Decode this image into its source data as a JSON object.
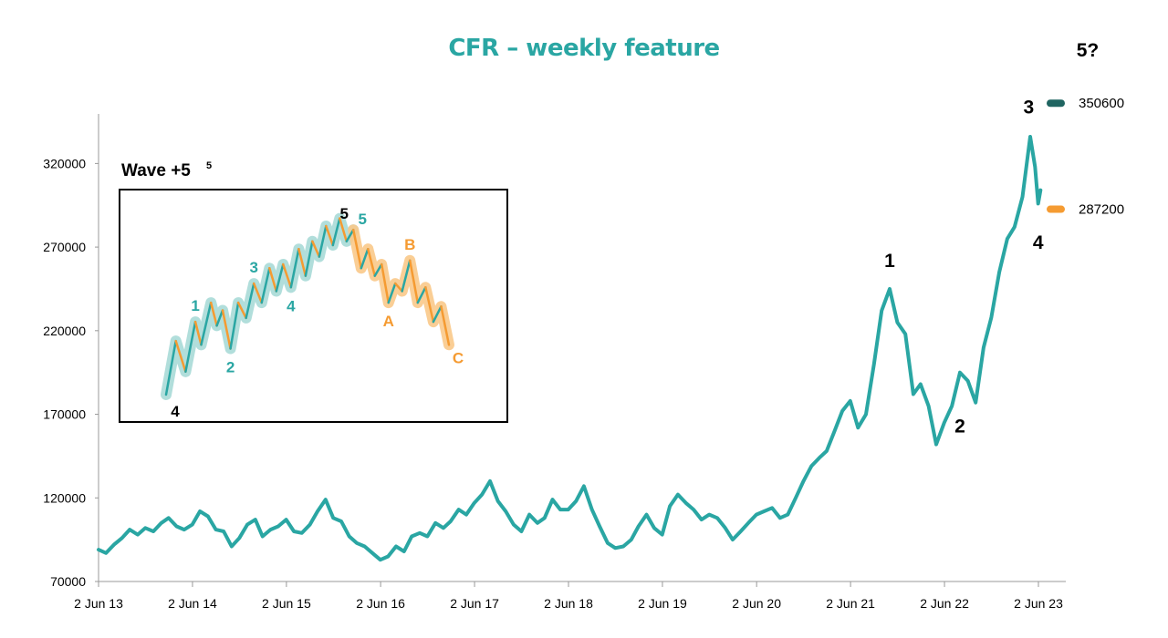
{
  "colors": {
    "primary": "#2aa6a3",
    "dark_teal": "#1f6561",
    "orange": "#f59b32",
    "light_teal": "#a9dad7",
    "light_orange": "#f9c98a",
    "axis": "#999999",
    "text": "#000000"
  },
  "chart_data": {
    "type": "line",
    "title": "CFR – weekly feature",
    "xlabel": "",
    "ylabel": "",
    "xlim": [
      "2013-06-02",
      "2023-06-15"
    ],
    "ylim": [
      70000,
      360000
    ],
    "yticks": [
      70000,
      120000,
      170000,
      220000,
      270000,
      320000
    ],
    "ytick_labels": [
      "70000",
      "120000",
      "170000",
      "220000",
      "270000",
      "320000"
    ],
    "xticks": [
      "2013-06-02",
      "2014-06-02",
      "2015-06-02",
      "2016-06-02",
      "2017-06-02",
      "2018-06-02",
      "2019-06-02",
      "2020-06-02",
      "2021-06-02",
      "2022-06-02",
      "2023-06-02"
    ],
    "xtick_labels": [
      "2 Jun 13",
      "2 Jun 14",
      "2 Jun 15",
      "2 Jun 16",
      "2 Jun 17",
      "2 Jun 18",
      "2 Jun 19",
      "2 Jun 20",
      "2 Jun 21",
      "2 Jun 22",
      "2 Jun 23"
    ],
    "grid": false,
    "series": [
      {
        "points": [
          [
            "2013-06-02",
            89000
          ],
          [
            "2013-07-01",
            87000
          ],
          [
            "2013-08-01",
            92000
          ],
          [
            "2013-09-01",
            96000
          ],
          [
            "2013-10-01",
            101000
          ],
          [
            "2013-11-01",
            98000
          ],
          [
            "2013-12-01",
            102000
          ],
          [
            "2014-01-01",
            100000
          ],
          [
            "2014-02-01",
            105000
          ],
          [
            "2014-03-01",
            108000
          ],
          [
            "2014-04-01",
            103000
          ],
          [
            "2014-05-01",
            101000
          ],
          [
            "2014-06-01",
            104000
          ],
          [
            "2014-07-01",
            112000
          ],
          [
            "2014-08-01",
            109000
          ],
          [
            "2014-09-01",
            101000
          ],
          [
            "2014-10-01",
            100000
          ],
          [
            "2014-11-01",
            91000
          ],
          [
            "2014-12-01",
            96000
          ],
          [
            "2015-01-01",
            104000
          ],
          [
            "2015-02-01",
            107000
          ],
          [
            "2015-03-01",
            97000
          ],
          [
            "2015-04-01",
            101000
          ],
          [
            "2015-05-01",
            103000
          ],
          [
            "2015-06-01",
            107000
          ],
          [
            "2015-07-01",
            100000
          ],
          [
            "2015-08-01",
            99000
          ],
          [
            "2015-09-01",
            104000
          ],
          [
            "2015-10-01",
            112000
          ],
          [
            "2015-11-01",
            119000
          ],
          [
            "2015-12-01",
            108000
          ],
          [
            "2016-01-01",
            106000
          ],
          [
            "2016-02-01",
            97000
          ],
          [
            "2016-03-01",
            93000
          ],
          [
            "2016-04-01",
            91000
          ],
          [
            "2016-05-01",
            87000
          ],
          [
            "2016-06-01",
            83000
          ],
          [
            "2016-07-01",
            85000
          ],
          [
            "2016-08-01",
            91000
          ],
          [
            "2016-09-01",
            88000
          ],
          [
            "2016-10-01",
            97000
          ],
          [
            "2016-11-01",
            99000
          ],
          [
            "2016-12-01",
            97000
          ],
          [
            "2017-01-01",
            105000
          ],
          [
            "2017-02-01",
            102000
          ],
          [
            "2017-03-01",
            106000
          ],
          [
            "2017-04-01",
            113000
          ],
          [
            "2017-05-01",
            110000
          ],
          [
            "2017-06-01",
            117000
          ],
          [
            "2017-07-01",
            122000
          ],
          [
            "2017-08-01",
            130000
          ],
          [
            "2017-09-01",
            118000
          ],
          [
            "2017-10-01",
            112000
          ],
          [
            "2017-11-01",
            104000
          ],
          [
            "2017-12-01",
            100000
          ],
          [
            "2018-01-01",
            110000
          ],
          [
            "2018-02-01",
            105000
          ],
          [
            "2018-03-01",
            108000
          ],
          [
            "2018-04-01",
            119000
          ],
          [
            "2018-05-01",
            113000
          ],
          [
            "2018-06-01",
            113000
          ],
          [
            "2018-07-01",
            118000
          ],
          [
            "2018-08-01",
            127000
          ],
          [
            "2018-09-01",
            113000
          ],
          [
            "2018-10-01",
            103000
          ],
          [
            "2018-11-01",
            93000
          ],
          [
            "2018-12-01",
            90000
          ],
          [
            "2019-01-01",
            91000
          ],
          [
            "2019-02-01",
            95000
          ],
          [
            "2019-03-01",
            103000
          ],
          [
            "2019-04-01",
            110000
          ],
          [
            "2019-05-01",
            102000
          ],
          [
            "2019-06-01",
            98000
          ],
          [
            "2019-07-01",
            115000
          ],
          [
            "2019-08-01",
            122000
          ],
          [
            "2019-09-01",
            117000
          ],
          [
            "2019-10-01",
            113000
          ],
          [
            "2019-11-01",
            107000
          ],
          [
            "2019-12-01",
            110000
          ],
          [
            "2020-01-01",
            108000
          ],
          [
            "2020-02-01",
            102000
          ],
          [
            "2020-03-01",
            95000
          ],
          [
            "2020-04-01",
            100000
          ],
          [
            "2020-05-01",
            105000
          ],
          [
            "2020-06-01",
            110000
          ],
          [
            "2020-07-01",
            112000
          ],
          [
            "2020-08-01",
            114000
          ],
          [
            "2020-09-01",
            108000
          ],
          [
            "2020-10-01",
            110000
          ],
          [
            "2020-11-01",
            120000
          ],
          [
            "2020-12-01",
            130000
          ],
          [
            "2021-01-01",
            139000
          ],
          [
            "2021-02-01",
            144000
          ],
          [
            "2021-03-01",
            148000
          ],
          [
            "2021-04-01",
            160000
          ],
          [
            "2021-05-01",
            172000
          ],
          [
            "2021-06-01",
            178000
          ],
          [
            "2021-07-01",
            162000
          ],
          [
            "2021-08-01",
            170000
          ],
          [
            "2021-09-01",
            200000
          ],
          [
            "2021-10-01",
            232000
          ],
          [
            "2021-11-01",
            245000
          ],
          [
            "2021-12-01",
            225000
          ],
          [
            "2022-01-01",
            218000
          ],
          [
            "2022-02-01",
            182000
          ],
          [
            "2022-03-01",
            188000
          ],
          [
            "2022-04-01",
            175000
          ],
          [
            "2022-05-01",
            152000
          ],
          [
            "2022-06-01",
            165000
          ],
          [
            "2022-07-01",
            175000
          ],
          [
            "2022-08-01",
            195000
          ],
          [
            "2022-09-01",
            190000
          ],
          [
            "2022-10-01",
            177000
          ],
          [
            "2022-11-01",
            210000
          ],
          [
            "2022-12-01",
            228000
          ],
          [
            "2023-01-01",
            255000
          ],
          [
            "2023-02-01",
            275000
          ],
          [
            "2023-03-01",
            282000
          ],
          [
            "2023-04-01",
            300000
          ],
          [
            "2023-05-01",
            336000
          ],
          [
            "2023-05-20",
            318000
          ],
          [
            "2023-06-01",
            296000
          ],
          [
            "2023-06-10",
            304000
          ]
        ]
      }
    ],
    "annotations": [
      {
        "text": "1",
        "x": "2021-11-01",
        "y": 258000,
        "color": "#000000"
      },
      {
        "text": "2",
        "x": "2022-08-01",
        "y": 159000,
        "color": "#000000"
      },
      {
        "text": "3",
        "x": "2023-04-25",
        "y": 350000,
        "color": "#000000"
      },
      {
        "text": "4",
        "x": "2023-06-01",
        "y": 269000,
        "color": "#000000"
      },
      {
        "text": "5?",
        "x": "2023-06-01",
        "y": 393000,
        "color": "#000000"
      }
    ],
    "reference_markers": [
      {
        "label": "350600",
        "y": 350600,
        "color": "#1f6561"
      },
      {
        "label": "287200",
        "y": 287200,
        "color": "#f59b32"
      }
    ]
  },
  "inset": {
    "title": "Wave +5",
    "title_superscript": "5",
    "zigzag_points": [
      [
        0.0,
        80
      ],
      [
        1.0,
        94
      ],
      [
        2.0,
        86
      ],
      [
        3.0,
        99
      ],
      [
        3.6,
        93
      ],
      [
        4.6,
        104
      ],
      [
        5.2,
        98
      ],
      [
        5.8,
        102
      ],
      [
        6.6,
        92
      ],
      [
        7.4,
        104
      ],
      [
        8.2,
        100
      ],
      [
        9.0,
        109
      ],
      [
        9.8,
        104
      ],
      [
        10.6,
        113
      ],
      [
        11.3,
        107
      ],
      [
        12.0,
        114
      ],
      [
        12.8,
        108
      ],
      [
        13.6,
        118
      ],
      [
        14.3,
        111
      ],
      [
        15.0,
        120
      ],
      [
        15.7,
        116
      ],
      [
        16.4,
        124
      ],
      [
        17.1,
        119
      ],
      [
        17.8,
        126
      ],
      [
        18.5,
        120
      ],
      [
        19.2,
        123
      ],
      [
        20.0,
        113
      ],
      [
        20.7,
        118
      ],
      [
        21.4,
        111
      ],
      [
        22.1,
        114
      ],
      [
        22.8,
        104
      ],
      [
        23.5,
        109
      ],
      [
        24.2,
        107
      ],
      [
        25.0,
        115
      ],
      [
        25.8,
        104
      ],
      [
        26.6,
        108
      ],
      [
        27.4,
        99
      ],
      [
        28.2,
        103
      ],
      [
        29.0,
        93
      ]
    ],
    "labels": [
      {
        "text": "4",
        "i": 0,
        "dy": 1,
        "color": "#000000"
      },
      {
        "text": "1",
        "i": 3,
        "dy": -1,
        "color": "#2aa6a3"
      },
      {
        "text": "2",
        "i": 8,
        "dy": 1,
        "color": "#2aa6a3"
      },
      {
        "text": "3",
        "i": 11,
        "dy": -1,
        "color": "#2aa6a3"
      },
      {
        "text": "4",
        "i": 16,
        "dy": 1,
        "color": "#2aa6a3"
      },
      {
        "text": "5",
        "i": 25,
        "dy": -1,
        "color": "#000000"
      },
      {
        "text": "5",
        "i": 25,
        "dy": -1,
        "color": "#2aa6a3"
      },
      {
        "text": "A",
        "i": 30,
        "dy": 1,
        "color": "#f59b32"
      },
      {
        "text": "B",
        "i": 33,
        "dy": -1,
        "color": "#f59b32"
      },
      {
        "text": "C",
        "i": 38,
        "dy": 1,
        "color": "#f59b32"
      }
    ]
  }
}
